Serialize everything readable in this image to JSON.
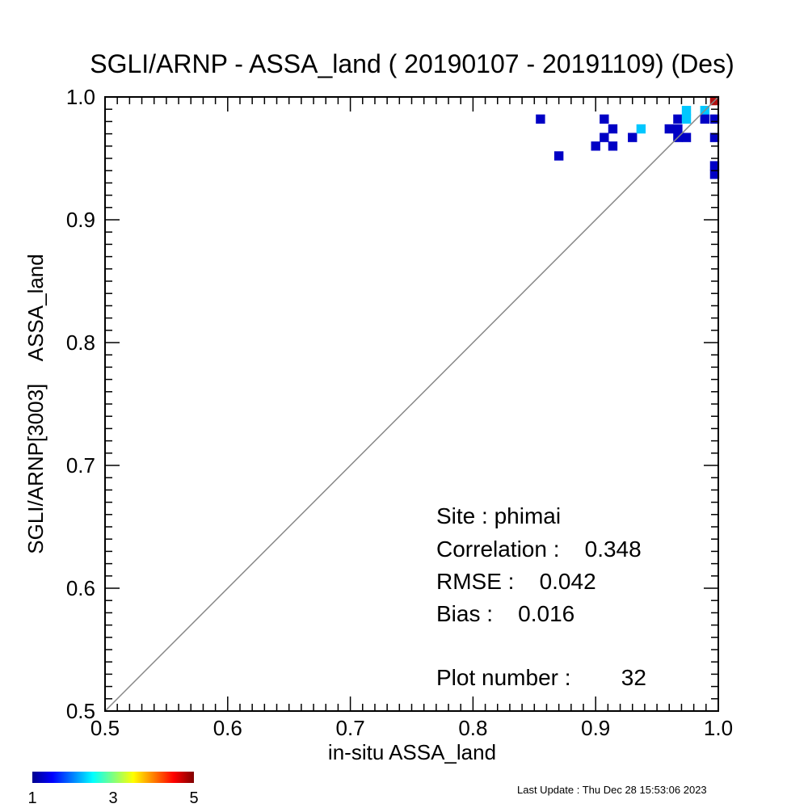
{
  "chart_data": {
    "type": "heatmap",
    "title": "SGLI/ARNP - ASSA_land ( 20190107 - 20191109) (Des)",
    "xlabel": "in-situ ASSA_land",
    "ylabel": "SGLI/ARNP[3003]    ASSA_land",
    "xlim": [
      0.5,
      1.0
    ],
    "ylim": [
      0.5,
      1.0
    ],
    "x_ticks": [
      "0.5",
      "0.6",
      "0.7",
      "0.8",
      "0.9",
      "1.0"
    ],
    "y_ticks": [
      "0.5",
      "0.6",
      "0.7",
      "0.8",
      "0.9",
      "1.0"
    ],
    "grid": false,
    "one_to_one_line": true,
    "bin_width": 0.0075,
    "cells": [
      {
        "x": 0.855,
        "y": 0.982,
        "count": 1
      },
      {
        "x": 0.87,
        "y": 0.952,
        "count": 1
      },
      {
        "x": 0.9,
        "y": 0.96,
        "count": 1
      },
      {
        "x": 0.907,
        "y": 0.982,
        "count": 1
      },
      {
        "x": 0.907,
        "y": 0.967,
        "count": 1
      },
      {
        "x": 0.914,
        "y": 0.974,
        "count": 1
      },
      {
        "x": 0.914,
        "y": 0.96,
        "count": 1
      },
      {
        "x": 0.93,
        "y": 0.967,
        "count": 1
      },
      {
        "x": 0.937,
        "y": 0.974,
        "count": 2
      },
      {
        "x": 0.96,
        "y": 0.974,
        "count": 1
      },
      {
        "x": 0.967,
        "y": 0.982,
        "count": 1
      },
      {
        "x": 0.967,
        "y": 0.974,
        "count": 1
      },
      {
        "x": 0.967,
        "y": 0.967,
        "count": 1
      },
      {
        "x": 0.974,
        "y": 0.989,
        "count": 2
      },
      {
        "x": 0.974,
        "y": 0.982,
        "count": 2
      },
      {
        "x": 0.974,
        "y": 0.967,
        "count": 1
      },
      {
        "x": 0.989,
        "y": 0.989,
        "count": 2
      },
      {
        "x": 0.989,
        "y": 0.982,
        "count": 1
      },
      {
        "x": 0.997,
        "y": 0.997,
        "count": 5
      },
      {
        "x": 0.997,
        "y": 0.982,
        "count": 1
      },
      {
        "x": 0.997,
        "y": 0.967,
        "count": 1
      },
      {
        "x": 0.997,
        "y": 0.944,
        "count": 1
      },
      {
        "x": 0.997,
        "y": 0.937,
        "count": 1
      }
    ],
    "colorbar": {
      "min": 1,
      "max": 5,
      "tick_labels": [
        "1",
        "3",
        "5"
      ]
    },
    "annotations": {
      "site": "Site : phimai",
      "correlation": "Correlation :    0.348",
      "rmse": "RMSE :    0.042",
      "bias": "Bias :    0.016",
      "plot_number": "Plot number :        32"
    }
  },
  "footer": {
    "last_update": "Last Update : Thu Dec 28 15:53:06 2023"
  },
  "colors": {
    "one_to_one_line": "#888888"
  }
}
